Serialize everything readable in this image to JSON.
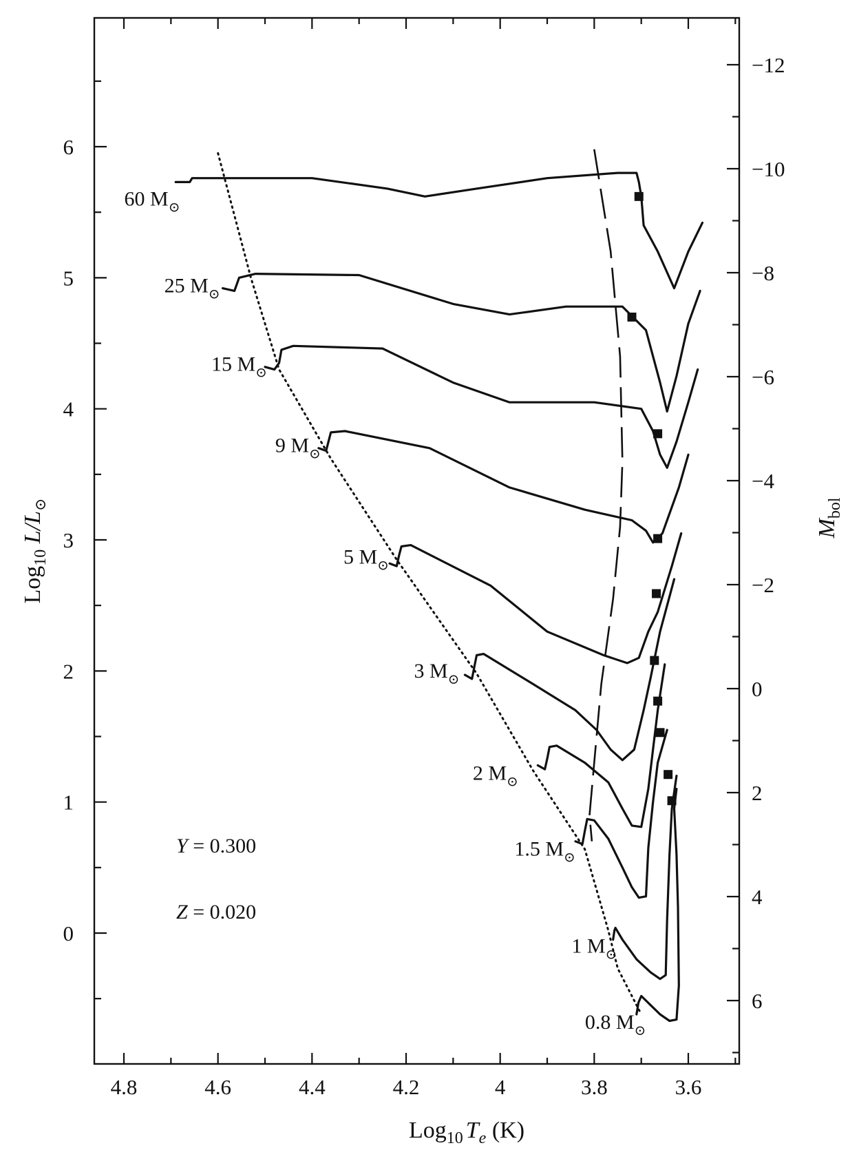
{
  "chart_data": {
    "type": "line",
    "xlabel": "Log10 Te (K)",
    "ylabel": "Log10 L/L⊙",
    "y2label": "Mbol",
    "xlim": [
      4.86,
      3.49
    ],
    "ylim": [
      -1.0,
      7.1
    ],
    "x_reversed": true,
    "x_ticks": [
      "4.8",
      "4.6",
      "4.4",
      "4.2",
      "4",
      "3.8",
      "3.6"
    ],
    "y_ticks": [
      "0",
      "1",
      "2",
      "3",
      "4",
      "5",
      "6"
    ],
    "y2_ticks": [
      "−12",
      "−10",
      "−8",
      "−6",
      "−4",
      "−2",
      "0",
      "2",
      "4",
      "6"
    ],
    "annotations": [
      "Y = 0.300",
      "Z = 0.020"
    ],
    "series": [
      {
        "name": "60 M⊙",
        "points": [
          [
            4.69,
            5.73
          ],
          [
            4.66,
            5.73
          ],
          [
            4.655,
            5.76
          ],
          [
            4.4,
            5.76
          ],
          [
            4.24,
            5.68
          ],
          [
            4.16,
            5.62
          ],
          [
            4.05,
            5.68
          ],
          [
            3.9,
            5.76
          ],
          [
            3.75,
            5.8
          ],
          [
            3.71,
            5.8
          ],
          [
            3.705,
            5.73
          ],
          [
            3.7,
            5.62
          ],
          [
            3.695,
            5.4
          ],
          [
            3.665,
            5.2
          ],
          [
            3.63,
            4.92
          ],
          [
            3.6,
            5.2
          ],
          [
            3.57,
            5.42
          ]
        ]
      },
      {
        "name": "25 M⊙",
        "points": [
          [
            4.59,
            4.92
          ],
          [
            4.565,
            4.9
          ],
          [
            4.56,
            4.95
          ],
          [
            4.555,
            5.0
          ],
          [
            4.52,
            5.03
          ],
          [
            4.3,
            5.02
          ],
          [
            4.1,
            4.8
          ],
          [
            3.98,
            4.72
          ],
          [
            3.86,
            4.78
          ],
          [
            3.74,
            4.78
          ],
          [
            3.69,
            4.6
          ],
          [
            3.66,
            4.2
          ],
          [
            3.645,
            3.98
          ],
          [
            3.625,
            4.25
          ],
          [
            3.6,
            4.65
          ],
          [
            3.575,
            4.9
          ]
        ]
      },
      {
        "name": "15 M⊙",
        "points": [
          [
            4.5,
            4.32
          ],
          [
            4.48,
            4.3
          ],
          [
            4.47,
            4.35
          ],
          [
            4.465,
            4.45
          ],
          [
            4.44,
            4.48
          ],
          [
            4.25,
            4.46
          ],
          [
            4.1,
            4.2
          ],
          [
            3.98,
            4.05
          ],
          [
            3.8,
            4.05
          ],
          [
            3.7,
            4.0
          ],
          [
            3.675,
            3.83
          ],
          [
            3.66,
            3.65
          ],
          [
            3.645,
            3.55
          ],
          [
            3.625,
            3.75
          ],
          [
            3.6,
            4.05
          ],
          [
            3.58,
            4.3
          ]
        ]
      },
      {
        "name": "9 M⊙",
        "points": [
          [
            4.386,
            3.7
          ],
          [
            4.37,
            3.68
          ],
          [
            4.365,
            3.75
          ],
          [
            4.36,
            3.82
          ],
          [
            4.33,
            3.83
          ],
          [
            4.15,
            3.7
          ],
          [
            3.98,
            3.4
          ],
          [
            3.82,
            3.23
          ],
          [
            3.72,
            3.15
          ],
          [
            3.69,
            3.07
          ],
          [
            3.675,
            2.98
          ],
          [
            3.655,
            3.05
          ],
          [
            3.62,
            3.4
          ],
          [
            3.6,
            3.65
          ]
        ]
      },
      {
        "name": "5 M⊙",
        "points": [
          [
            4.235,
            2.82
          ],
          [
            4.22,
            2.8
          ],
          [
            4.215,
            2.88
          ],
          [
            4.21,
            2.95
          ],
          [
            4.19,
            2.96
          ],
          [
            4.02,
            2.65
          ],
          [
            3.9,
            2.3
          ],
          [
            3.78,
            2.12
          ],
          [
            3.73,
            2.06
          ],
          [
            3.705,
            2.1
          ],
          [
            3.685,
            2.3
          ],
          [
            3.665,
            2.45
          ],
          [
            3.635,
            2.8
          ],
          [
            3.615,
            3.05
          ]
        ]
      },
      {
        "name": "3 M⊙",
        "points": [
          [
            4.075,
            1.97
          ],
          [
            4.06,
            1.94
          ],
          [
            4.055,
            2.03
          ],
          [
            4.05,
            2.12
          ],
          [
            4.035,
            2.13
          ],
          [
            3.93,
            1.9
          ],
          [
            3.84,
            1.7
          ],
          [
            3.795,
            1.55
          ],
          [
            3.765,
            1.4
          ],
          [
            3.74,
            1.32
          ],
          [
            3.715,
            1.4
          ],
          [
            3.695,
            1.7
          ],
          [
            3.68,
            1.95
          ],
          [
            3.66,
            2.3
          ],
          [
            3.63,
            2.7
          ]
        ]
      },
      {
        "name": "2 M⊙",
        "points": [
          [
            3.92,
            1.28
          ],
          [
            3.905,
            1.25
          ],
          [
            3.9,
            1.33
          ],
          [
            3.895,
            1.42
          ],
          [
            3.88,
            1.43
          ],
          [
            3.82,
            1.3
          ],
          [
            3.77,
            1.15
          ],
          [
            3.74,
            0.95
          ],
          [
            3.72,
            0.82
          ],
          [
            3.7,
            0.81
          ],
          [
            3.685,
            1.1
          ],
          [
            3.675,
            1.4
          ],
          [
            3.665,
            1.7
          ],
          [
            3.65,
            2.05
          ]
        ]
      },
      {
        "name": "1.5 M⊙",
        "points": [
          [
            3.84,
            0.7
          ],
          [
            3.825,
            0.68
          ],
          [
            3.82,
            0.78
          ],
          [
            3.815,
            0.87
          ],
          [
            3.8,
            0.86
          ],
          [
            3.77,
            0.72
          ],
          [
            3.74,
            0.5
          ],
          [
            3.72,
            0.35
          ],
          [
            3.705,
            0.27
          ],
          [
            3.69,
            0.28
          ],
          [
            3.685,
            0.65
          ],
          [
            3.675,
            1.0
          ],
          [
            3.665,
            1.3
          ],
          [
            3.645,
            1.55
          ]
        ]
      },
      {
        "name": "1 M⊙",
        "points": [
          [
            3.76,
            -0.05
          ],
          [
            3.757,
            0.02
          ],
          [
            3.755,
            0.04
          ],
          [
            3.74,
            -0.05
          ],
          [
            3.71,
            -0.2
          ],
          [
            3.68,
            -0.3
          ],
          [
            3.66,
            -0.35
          ],
          [
            3.648,
            -0.32
          ],
          [
            3.645,
            0.1
          ],
          [
            3.64,
            0.6
          ],
          [
            3.635,
            0.95
          ],
          [
            3.625,
            1.2
          ]
        ]
      },
      {
        "name": "0.8 M⊙",
        "points": [
          [
            3.71,
            -0.62
          ],
          [
            3.706,
            -0.53
          ],
          [
            3.7,
            -0.48
          ],
          [
            3.68,
            -0.55
          ],
          [
            3.66,
            -0.62
          ],
          [
            3.64,
            -0.67
          ],
          [
            3.625,
            -0.66
          ],
          [
            3.62,
            -0.4
          ],
          [
            3.622,
            0.2
          ],
          [
            3.625,
            0.6
          ],
          [
            3.63,
            0.95
          ],
          [
            3.625,
            1.1
          ]
        ]
      }
    ],
    "zams": [
      [
        4.6,
        5.95
      ],
      [
        4.53,
        5.0
      ],
      [
        4.47,
        4.3
      ],
      [
        4.36,
        3.62
      ],
      [
        4.22,
        2.85
      ],
      [
        4.05,
        1.98
      ],
      [
        3.93,
        1.24
      ],
      [
        3.82,
        0.64
      ],
      [
        3.77,
        0.02
      ],
      [
        3.75,
        -0.27
      ],
      [
        3.7,
        -0.62
      ]
    ],
    "hayashi_line": [
      [
        3.8,
        5.98
      ],
      [
        3.765,
        5.2
      ],
      [
        3.745,
        4.4
      ],
      [
        3.74,
        3.6
      ],
      [
        3.745,
        3.1
      ],
      [
        3.76,
        2.55
      ],
      [
        3.785,
        1.9
      ],
      [
        3.8,
        1.3
      ],
      [
        3.81,
        0.9
      ],
      [
        3.805,
        0.7
      ]
    ],
    "markers": [
      [
        3.705,
        5.62
      ],
      [
        3.72,
        4.7
      ],
      [
        3.665,
        3.81
      ],
      [
        3.665,
        3.01
      ],
      [
        3.668,
        2.59
      ],
      [
        3.672,
        2.08
      ],
      [
        3.665,
        1.77
      ],
      [
        3.66,
        1.53
      ],
      [
        3.643,
        1.21
      ],
      [
        3.635,
        1.01
      ]
    ]
  },
  "labels": {
    "x_title_main": "Log",
    "x_title_sub": "10",
    "x_title_var": "T",
    "x_title_varsub": "e",
    "x_title_unit": " (K)",
    "y_title_main": "Log",
    "y_title_sub": "10",
    "y_title_var": " L/L",
    "y_title_sun": "⊙",
    "y2_title_var": "M",
    "y2_title_sub": "bol",
    "ann_y_var": "Y",
    "ann_y_val": " = 0.300",
    "ann_z_var": "Z",
    "ann_z_val": " = 0.020",
    "mass_labels": [
      {
        "num": "60 M",
        "x": 4.74,
        "y": 5.55
      },
      {
        "num": "25 M",
        "x": 4.655,
        "y": 4.89
      },
      {
        "num": "15 M",
        "x": 4.555,
        "y": 4.29
      },
      {
        "num": "9 M",
        "x": 4.43,
        "y": 3.67
      },
      {
        "num": "5 M",
        "x": 4.285,
        "y": 2.82
      },
      {
        "num": "3 M",
        "x": 4.135,
        "y": 1.95
      },
      {
        "num": "2 M",
        "x": 4.01,
        "y": 1.17
      },
      {
        "num": "1.5 M",
        "x": 3.905,
        "y": 0.59
      },
      {
        "num": "1 M",
        "x": 3.8,
        "y": -0.15
      },
      {
        "num": "0.8 M",
        "x": 3.755,
        "y": -0.73
      }
    ],
    "sun_symbol": "⊙"
  }
}
